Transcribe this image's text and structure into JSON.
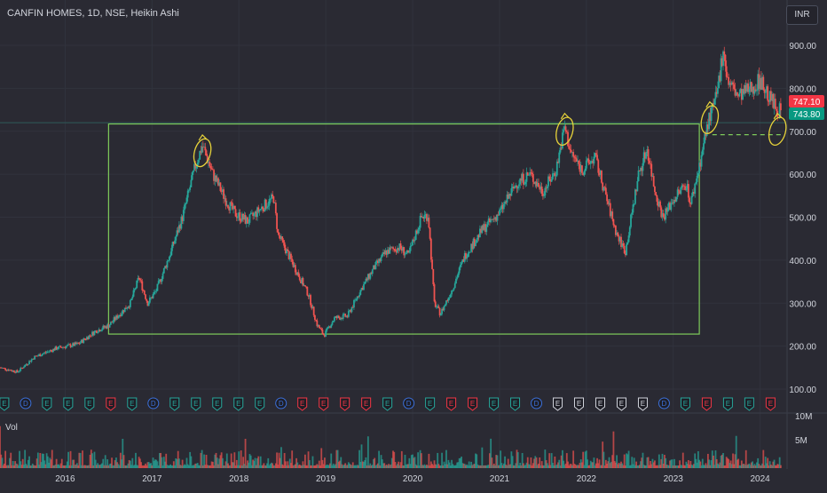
{
  "header": {
    "title": "CANFIN HOMES, 1D, NSE, Heikin Ashi",
    "currency": "INR"
  },
  "price_tags": [
    {
      "value": "747.10",
      "color": "#f23645"
    },
    {
      "value": "743.80",
      "color": "#089981"
    }
  ],
  "volume_pane": {
    "label": "Vol",
    "ticks": [
      "10M",
      "5M"
    ]
  },
  "colors": {
    "up": "#26a69a",
    "down": "#ef5350",
    "box": "#7ecb5a",
    "marker": "#e6d23a",
    "background": "#2a2a33",
    "text": "#d1d4dc"
  },
  "event_markers": [
    "E",
    "D"
  ],
  "chart_data": {
    "type": "candlestick",
    "title": "CANFIN HOMES, 1D, NSE, Heikin Ashi",
    "ylim": [
      100,
      930
    ],
    "ytick_labels": [
      "900.00",
      "800.00",
      "700.00",
      "600.00",
      "500.00",
      "400.00",
      "300.00",
      "200.00",
      "100.00"
    ],
    "xtick_labels": [
      "2016",
      "2017",
      "2018",
      "2019",
      "2020",
      "2021",
      "2022",
      "2023",
      "2024"
    ],
    "xlim": [
      2015.25,
      2024.3
    ],
    "price_path": [
      [
        2015.25,
        150
      ],
      [
        2015.45,
        140
      ],
      [
        2015.65,
        175
      ],
      [
        2015.9,
        195
      ],
      [
        2016.15,
        205
      ],
      [
        2016.35,
        235
      ],
      [
        2016.5,
        248
      ],
      [
        2016.75,
        300
      ],
      [
        2016.85,
        360
      ],
      [
        2016.95,
        300
      ],
      [
        2017.05,
        330
      ],
      [
        2017.2,
        410
      ],
      [
        2017.35,
        500
      ],
      [
        2017.5,
        620
      ],
      [
        2017.58,
        668
      ],
      [
        2017.7,
        600
      ],
      [
        2017.85,
        540
      ],
      [
        2017.95,
        510
      ],
      [
        2018.1,
        490
      ],
      [
        2018.25,
        520
      ],
      [
        2018.4,
        545
      ],
      [
        2018.45,
        460
      ],
      [
        2018.55,
        420
      ],
      [
        2018.7,
        360
      ],
      [
        2018.8,
        320
      ],
      [
        2018.9,
        250
      ],
      [
        2018.98,
        225
      ],
      [
        2019.1,
        265
      ],
      [
        2019.25,
        270
      ],
      [
        2019.4,
        330
      ],
      [
        2019.55,
        380
      ],
      [
        2019.7,
        420
      ],
      [
        2019.85,
        430
      ],
      [
        2019.95,
        410
      ],
      [
        2020.1,
        500
      ],
      [
        2020.18,
        505
      ],
      [
        2020.25,
        300
      ],
      [
        2020.32,
        275
      ],
      [
        2020.45,
        330
      ],
      [
        2020.6,
        410
      ],
      [
        2020.8,
        470
      ],
      [
        2021.0,
        510
      ],
      [
        2021.2,
        580
      ],
      [
        2021.35,
        600
      ],
      [
        2021.5,
        560
      ],
      [
        2021.65,
        610
      ],
      [
        2021.75,
        710
      ],
      [
        2021.82,
        650
      ],
      [
        2021.95,
        610
      ],
      [
        2022.1,
        640
      ],
      [
        2022.25,
        530
      ],
      [
        2022.35,
        460
      ],
      [
        2022.45,
        420
      ],
      [
        2022.6,
        600
      ],
      [
        2022.7,
        660
      ],
      [
        2022.78,
        570
      ],
      [
        2022.88,
        500
      ],
      [
        2023.0,
        540
      ],
      [
        2023.15,
        580
      ],
      [
        2023.2,
        530
      ],
      [
        2023.3,
        620
      ],
      [
        2023.4,
        720
      ],
      [
        2023.5,
        780
      ],
      [
        2023.58,
        900
      ],
      [
        2023.62,
        820
      ],
      [
        2023.75,
        780
      ],
      [
        2023.9,
        800
      ],
      [
        2024.0,
        820
      ],
      [
        2024.1,
        780
      ],
      [
        2024.2,
        750
      ],
      [
        2024.25,
        745
      ]
    ],
    "range_box": {
      "x": [
        2016.5,
        2023.3
      ],
      "y": [
        228,
        717
      ]
    },
    "support_line": {
      "x": [
        2023.45,
        2024.25
      ],
      "y": 692
    },
    "highlights": [
      {
        "x": 2017.58,
        "y": 650
      },
      {
        "x": 2021.75,
        "y": 700
      },
      {
        "x": 2023.42,
        "y": 727
      },
      {
        "x": 2024.2,
        "y": 700
      }
    ],
    "volume_ticks": [
      {
        "label": "10M",
        "value": 10000000
      },
      {
        "label": "5M",
        "value": 5000000
      }
    ]
  }
}
